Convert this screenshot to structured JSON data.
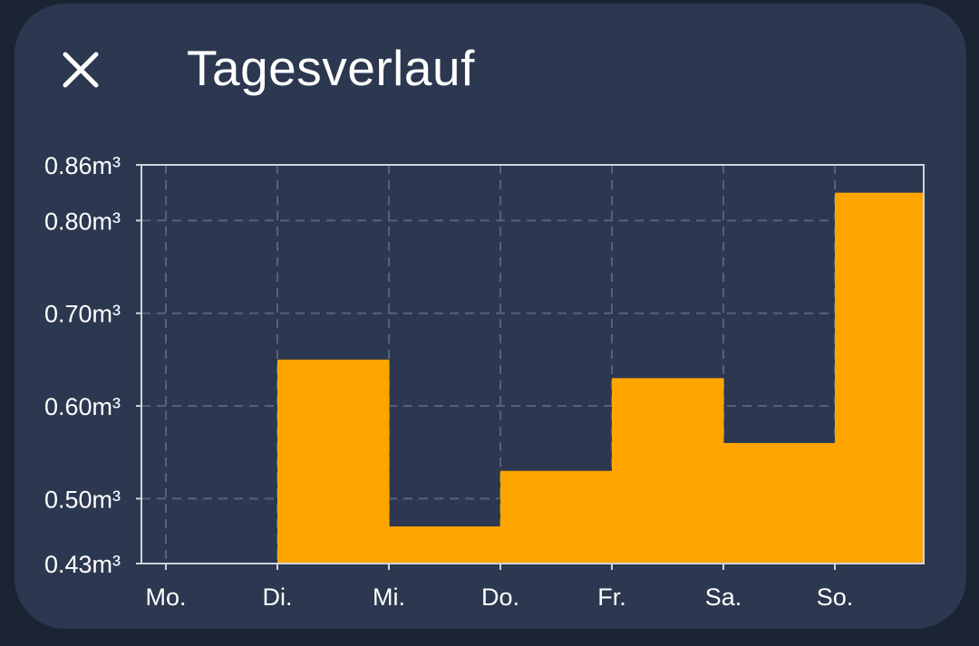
{
  "header": {
    "title": "Tagesverlauf",
    "close_icon": "close-icon"
  },
  "colors": {
    "bar": "#ffa500",
    "card": "#2c3850",
    "grid": "#56627b",
    "axis": "#cfd3da",
    "text": "#ffffff"
  },
  "chart_data": {
    "type": "area",
    "step": "post",
    "categories": [
      "Mo.",
      "Di.",
      "Mi.",
      "Do.",
      "Fr.",
      "Sa.",
      "So."
    ],
    "values": [
      0.43,
      0.65,
      0.47,
      0.53,
      0.63,
      0.56,
      0.83
    ],
    "y_tick_labels": [
      "0.43m³",
      "0.50m³",
      "0.60m³",
      "0.70m³",
      "0.80m³",
      "0.86m³"
    ],
    "y_ticks": [
      0.43,
      0.5,
      0.6,
      0.7,
      0.8,
      0.86
    ],
    "ylim": [
      0.43,
      0.86
    ],
    "unit": "m³",
    "grid": true
  }
}
